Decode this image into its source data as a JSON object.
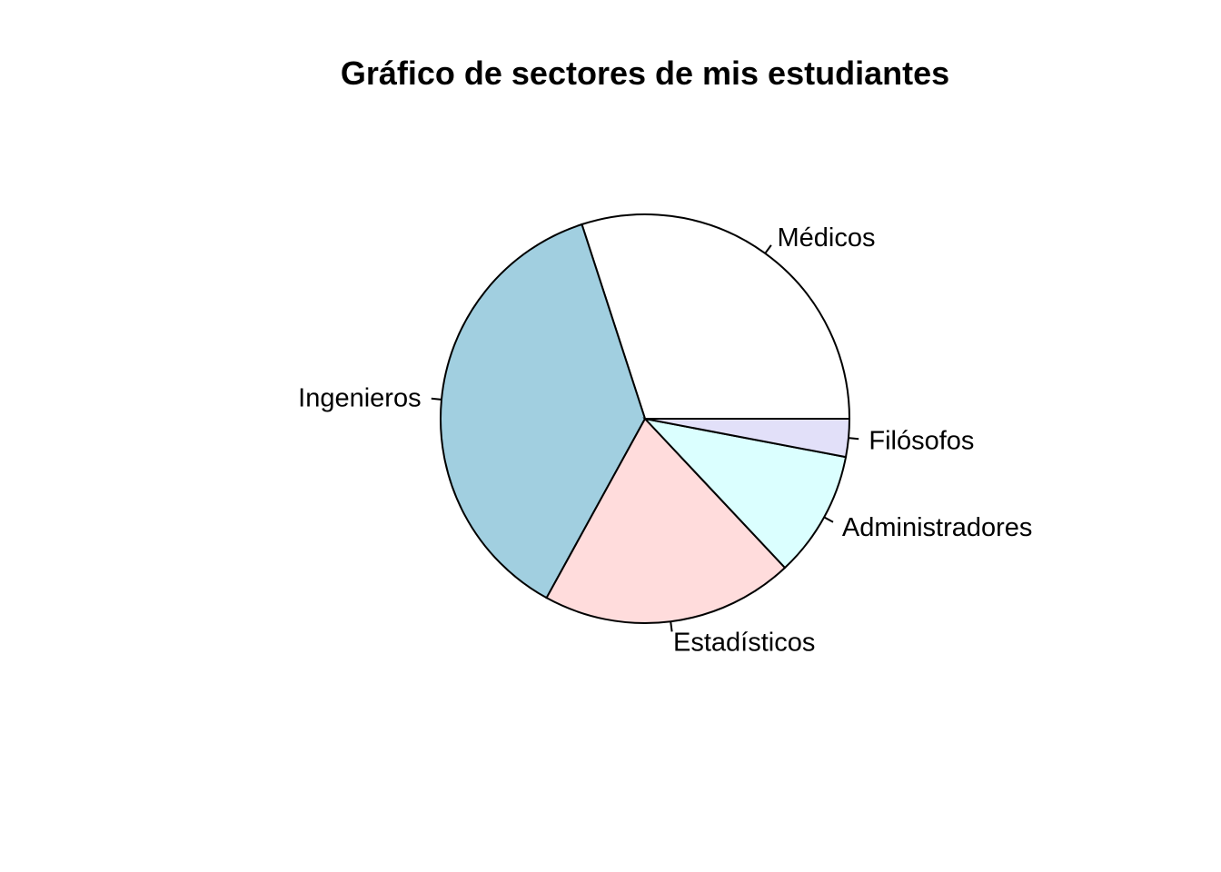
{
  "chart_data": {
    "type": "pie",
    "title": "Gráfico de sectores de mis estudiantes",
    "categories": [
      "Médicos",
      "Ingenieros",
      "Estadísticos",
      "Administradores",
      "Filósofos"
    ],
    "values": [
      30,
      37,
      20,
      10,
      3
    ],
    "colors": [
      "#FFFFFF",
      "#A1CFE0",
      "#FFDCDC",
      "#DBFFFF",
      "#E2E0F9"
    ],
    "start": "3 o'clock",
    "direction": "counterclockwise",
    "legend": "none (labels next to slices)"
  }
}
